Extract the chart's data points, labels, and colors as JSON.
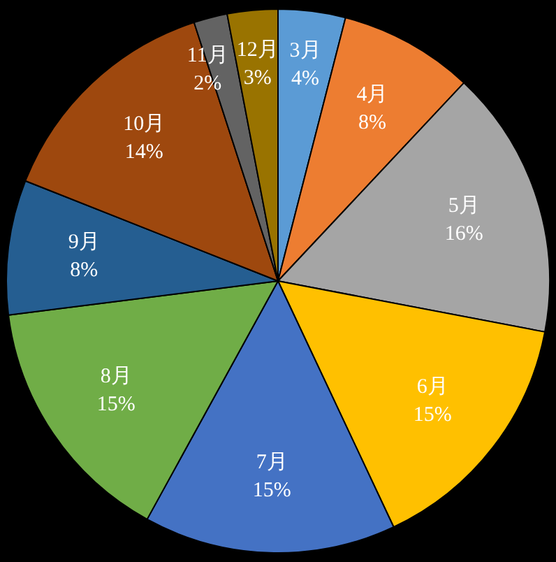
{
  "chart_data": {
    "type": "pie",
    "categories": [
      "3月",
      "4月",
      "5月",
      "6月",
      "7月",
      "8月",
      "9月",
      "10月",
      "11月",
      "12月"
    ],
    "values": [
      4,
      8,
      16,
      15,
      15,
      15,
      8,
      14,
      2,
      3
    ],
    "value_labels": [
      "4%",
      "8%",
      "16%",
      "15%",
      "15%",
      "15%",
      "8%",
      "14%",
      "2%",
      "3%"
    ],
    "colors": [
      "#5b9bd5",
      "#ed7d31",
      "#a5a5a5",
      "#ffc000",
      "#4472c4",
      "#70ad47",
      "#255e91",
      "#9e480e",
      "#636363",
      "#997300"
    ],
    "legend": false
  }
}
